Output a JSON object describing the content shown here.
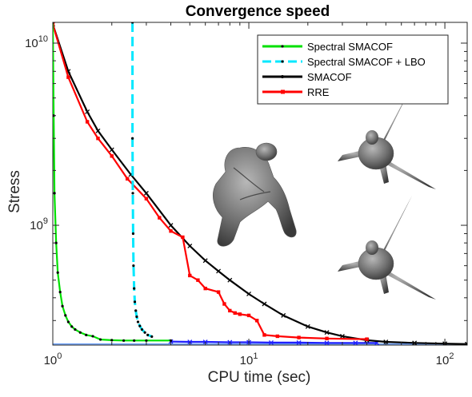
{
  "chart_data": {
    "type": "line",
    "title": "Convergence speed",
    "xlabel": "CPU time (sec)",
    "ylabel": "Stress",
    "xscale": "log",
    "yscale": "log",
    "xlim": [
      1,
      130
    ],
    "ylim": [
      220000000,
      13000000000
    ],
    "grid": false,
    "legend_position": "top-right",
    "x_ticks": [
      {
        "value": 1,
        "base": "10",
        "exp": "0"
      },
      {
        "value": 10,
        "base": "10",
        "exp": "1"
      },
      {
        "value": 100,
        "base": "10",
        "exp": "2"
      }
    ],
    "y_ticks": [
      {
        "value": 1000000000,
        "base": "10",
        "exp": "9"
      },
      {
        "value": 10000000000,
        "base": "10",
        "exp": "10"
      }
    ],
    "series": [
      {
        "name": "Spectral SMACOF",
        "color": "#00e000",
        "style": "solid",
        "marker": "dot",
        "x": [
          1.0,
          1.01,
          1.02,
          1.04,
          1.06,
          1.09,
          1.12,
          1.16,
          1.2,
          1.25,
          1.3,
          1.38,
          1.48,
          1.6,
          1.75,
          2.0,
          2.3,
          2.6,
          3.0,
          4.0
        ],
        "y": [
          13000000000,
          4000000000,
          1500000000,
          800000000,
          550000000,
          430000000,
          360000000,
          320000000,
          295000000,
          278000000,
          268000000,
          258000000,
          250000000,
          246000000,
          236000000,
          234000000,
          233000000,
          233000000,
          233000000,
          233000000
        ]
      },
      {
        "name": "Spectral SMACOF + LBO",
        "color": "#00e8ff",
        "style": "dashed",
        "marker": "dot",
        "x": [
          2.55,
          2.55,
          2.56,
          2.57,
          2.58,
          2.6,
          2.62,
          2.65,
          2.68,
          2.72,
          2.78,
          2.85,
          2.95,
          3.05,
          3.2
        ],
        "y": [
          13000000000,
          3000000000,
          1500000000,
          900000000,
          600000000,
          450000000,
          380000000,
          340000000,
          315000000,
          295000000,
          280000000,
          268000000,
          258000000,
          250000000,
          245000000
        ]
      },
      {
        "name": "SMACOF",
        "color": "#000000",
        "style": "solid",
        "marker": "x",
        "x": [
          1.0,
          1.2,
          1.5,
          1.7,
          2.0,
          2.5,
          3.0,
          4.0,
          5.0,
          6.0,
          7.0,
          8.0,
          10.0,
          12.0,
          15.0,
          20.0,
          25.0,
          30.0,
          40.0,
          50.0,
          70.0,
          100.0,
          130.0
        ],
        "y": [
          12700000000,
          7000000000,
          4200000000,
          3300000000,
          2600000000,
          1900000000,
          1500000000,
          1000000000,
          770000000,
          640000000,
          560000000,
          500000000,
          420000000,
          370000000,
          320000000,
          278000000,
          258000000,
          246000000,
          234000000,
          229000000,
          226000000,
          224000000,
          223000000
        ]
      },
      {
        "name": "RRE",
        "color": "#ff0000",
        "style": "solid",
        "marker": "square",
        "x": [
          1.0,
          1.2,
          1.5,
          1.7,
          2.0,
          2.4,
          3.0,
          3.5,
          4.0,
          4.6,
          5.0,
          5.5,
          6.0,
          7.0,
          7.5,
          8.0,
          8.5,
          9.0,
          10.0,
          11.0,
          12.0,
          14.0,
          18.0,
          25.0,
          40.0
        ],
        "y": [
          12700000000,
          6500000000,
          3700000000,
          3000000000,
          2400000000,
          1800000000,
          1400000000,
          1100000000,
          930000000,
          860000000,
          530000000,
          500000000,
          450000000,
          430000000,
          370000000,
          340000000,
          330000000,
          325000000,
          320000000,
          300000000,
          250000000,
          246000000,
          242000000,
          239000000,
          237000000
        ]
      },
      {
        "name": "",
        "color": "#1f1fff",
        "style": "solid",
        "marker": "x",
        "x": [
          4.0,
          5.0,
          6.0,
          8.0,
          10.0,
          13.0,
          18.0,
          25.0,
          35.0,
          45.0
        ],
        "y": [
          230000000,
          229000000,
          229000000,
          228000000,
          228000000,
          227000000,
          227000000,
          226000000,
          226000000,
          226000000
        ]
      }
    ],
    "baseline": {
      "color": "#6aa0ff",
      "y": 223000000
    }
  }
}
